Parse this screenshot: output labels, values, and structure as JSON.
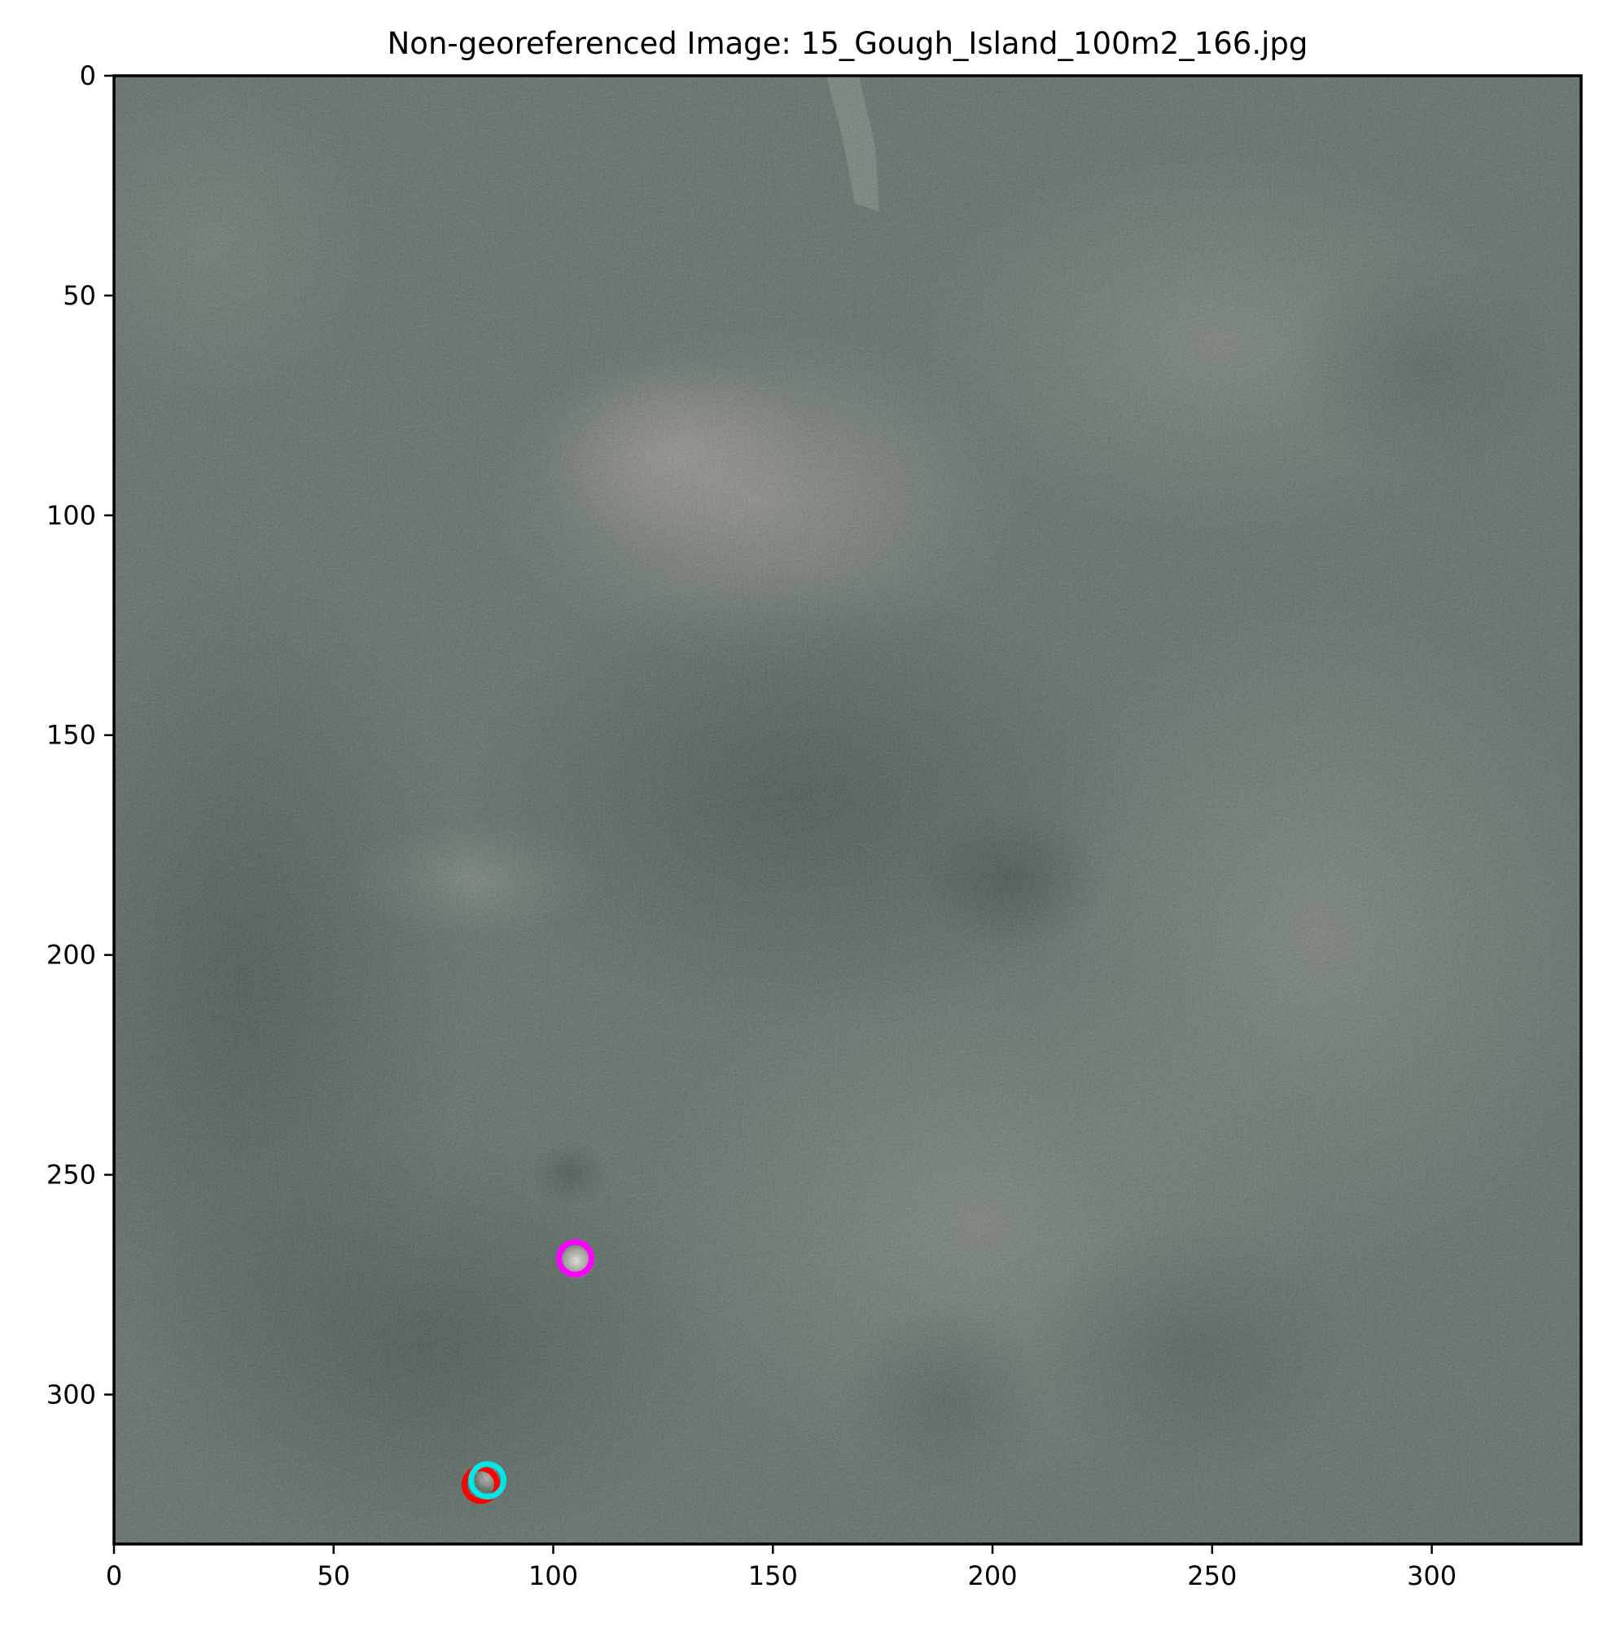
{
  "chart_data": {
    "type": "scatter",
    "title": "Non-georeferenced Image: 15_Gough_Island_100m2_166.jpg",
    "xlabel": "",
    "ylabel": "",
    "xlim": [
      0,
      334
    ],
    "ylim": [
      334,
      0
    ],
    "y_axis_inverted": true,
    "grid": false,
    "legend": "none",
    "x_ticks": [
      0,
      50,
      100,
      150,
      200,
      250,
      300
    ],
    "y_ticks": [
      0,
      50,
      100,
      150,
      200,
      250,
      300
    ],
    "background": "aerial photograph of mottled green-grey vegetation with paler patches",
    "series": [
      {
        "color": "#ff0000",
        "marker": "open circle",
        "points": [
          {
            "x": 83.5,
            "y": 320.5
          }
        ]
      },
      {
        "color": "#00e5e5",
        "marker": "open circle",
        "points": [
          {
            "x": 85,
            "y": 319.5
          }
        ]
      },
      {
        "color": "#ff00ff",
        "marker": "open circle",
        "points": [
          {
            "x": 105,
            "y": 269
          }
        ]
      }
    ]
  }
}
